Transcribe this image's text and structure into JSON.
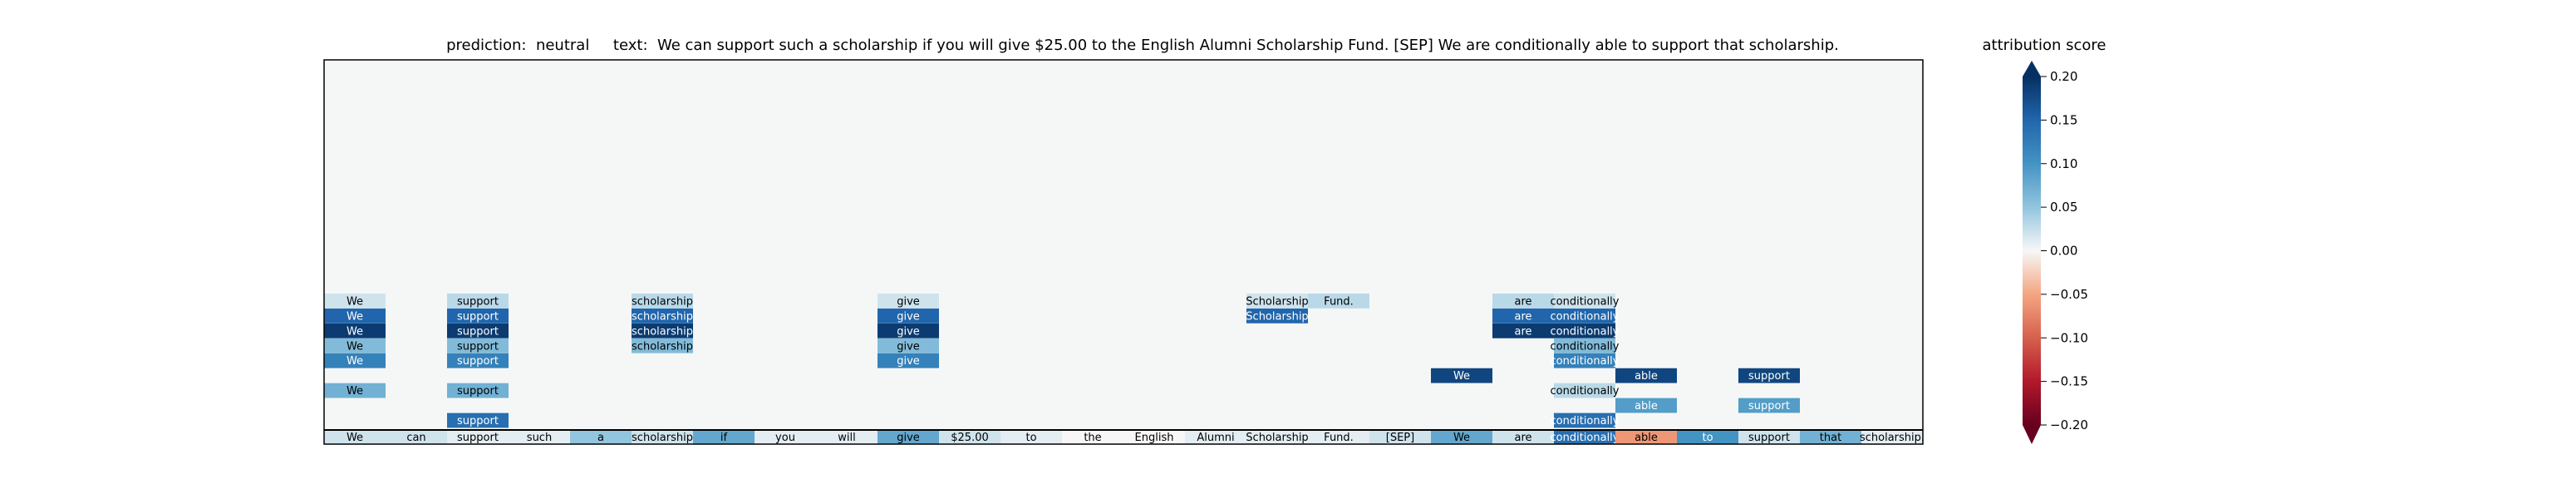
{
  "chart_data": {
    "type": "heatmap",
    "title": "prediction:  neutral     text:  We can support such a scholarship if you will give $25.00 to the English Alumni Scholarship Fund. [SEP] We are conditionally able to support that scholarship.",
    "colorbar_label": "attribution score",
    "colorbar_ticks": [
      "0.20",
      "0.15",
      "0.10",
      "0.05",
      "0.00",
      "−0.05",
      "−0.10",
      "−0.15",
      "−0.20"
    ],
    "colorbar_range": [
      -0.2,
      0.2
    ],
    "colormap": "RdBu",
    "background_color": "#f5f7f7",
    "tokens": [
      "We",
      "can",
      "support",
      "such",
      "a",
      "scholarship",
      "if",
      "you",
      "will",
      "give",
      "$25.00",
      "to",
      "the",
      "English",
      "Alumni",
      "Scholarship",
      "Fund.",
      "[SEP]",
      "We",
      "are",
      "conditionally",
      "able",
      "to",
      "support",
      "that",
      "scholarship."
    ],
    "token_scores": [
      0.02,
      0.02,
      0.01,
      0.01,
      0.05,
      0.02,
      0.08,
      0.01,
      0.01,
      0.08,
      0.02,
      0.01,
      0.0,
      0.0,
      0.01,
      0.01,
      0.01,
      0.02,
      0.08,
      0.02,
      0.14,
      -0.06,
      0.1,
      0.02,
      0.07,
      0.01
    ],
    "rows": 25,
    "cells": [
      {
        "row": 0,
        "token": 0,
        "label": "We",
        "score": 0.02
      },
      {
        "row": 0,
        "token": 2,
        "label": "support",
        "score": 0.03
      },
      {
        "row": 0,
        "token": 5,
        "label": "scholarship",
        "score": 0.03
      },
      {
        "row": 0,
        "token": 9,
        "label": "give",
        "score": 0.02
      },
      {
        "row": 0,
        "token": 15,
        "label": "Scholarship",
        "score": 0.02
      },
      {
        "row": 0,
        "token": 16,
        "label": "Fund.",
        "score": 0.03
      },
      {
        "row": 0,
        "token": 19,
        "label": "are",
        "score": 0.03
      },
      {
        "row": 0,
        "token": 20,
        "label": "conditionally",
        "score": 0.02
      },
      {
        "row": 1,
        "token": 0,
        "label": "We",
        "score": 0.15
      },
      {
        "row": 1,
        "token": 2,
        "label": "support",
        "score": 0.15
      },
      {
        "row": 1,
        "token": 5,
        "label": "scholarship",
        "score": 0.15
      },
      {
        "row": 1,
        "token": 9,
        "label": "give",
        "score": 0.15
      },
      {
        "row": 1,
        "token": 15,
        "label": "Scholarship",
        "score": 0.15
      },
      {
        "row": 1,
        "token": 19,
        "label": "are",
        "score": 0.15
      },
      {
        "row": 1,
        "token": 20,
        "label": "conditionally",
        "score": 0.15
      },
      {
        "row": 2,
        "token": 0,
        "label": "We",
        "score": 0.19
      },
      {
        "row": 2,
        "token": 2,
        "label": "support",
        "score": 0.19
      },
      {
        "row": 2,
        "token": 5,
        "label": "scholarship",
        "score": 0.19
      },
      {
        "row": 2,
        "token": 9,
        "label": "give",
        "score": 0.19
      },
      {
        "row": 2,
        "token": 19,
        "label": "are",
        "score": 0.19
      },
      {
        "row": 2,
        "token": 20,
        "label": "conditionally",
        "score": 0.19
      },
      {
        "row": 3,
        "token": 0,
        "label": "We",
        "score": 0.06
      },
      {
        "row": 3,
        "token": 2,
        "label": "support",
        "score": 0.06
      },
      {
        "row": 3,
        "token": 5,
        "label": "scholarship",
        "score": 0.06
      },
      {
        "row": 3,
        "token": 9,
        "label": "give",
        "score": 0.06
      },
      {
        "row": 3,
        "token": 20,
        "label": "conditionally",
        "score": 0.06
      },
      {
        "row": 4,
        "token": 0,
        "label": "We",
        "score": 0.12
      },
      {
        "row": 4,
        "token": 2,
        "label": "support",
        "score": 0.12
      },
      {
        "row": 4,
        "token": 9,
        "label": "give",
        "score": 0.12
      },
      {
        "row": 4,
        "token": 20,
        "label": "conditionally",
        "score": 0.12
      },
      {
        "row": 5,
        "token": 18,
        "label": "We",
        "score": 0.18
      },
      {
        "row": 5,
        "token": 21,
        "label": "able",
        "score": 0.18
      },
      {
        "row": 5,
        "token": 23,
        "label": "support",
        "score": 0.18
      },
      {
        "row": 6,
        "token": 0,
        "label": "We",
        "score": 0.07
      },
      {
        "row": 6,
        "token": 2,
        "label": "support",
        "score": 0.07
      },
      {
        "row": 6,
        "token": 20,
        "label": "conditionally",
        "score": 0.03
      },
      {
        "row": 7,
        "token": 21,
        "label": "able",
        "score": 0.09
      },
      {
        "row": 7,
        "token": 23,
        "label": "support",
        "score": 0.09
      },
      {
        "row": 8,
        "token": 2,
        "label": "support",
        "score": 0.14
      },
      {
        "row": 8,
        "token": 20,
        "label": "conditionally",
        "score": 0.14
      }
    ]
  }
}
